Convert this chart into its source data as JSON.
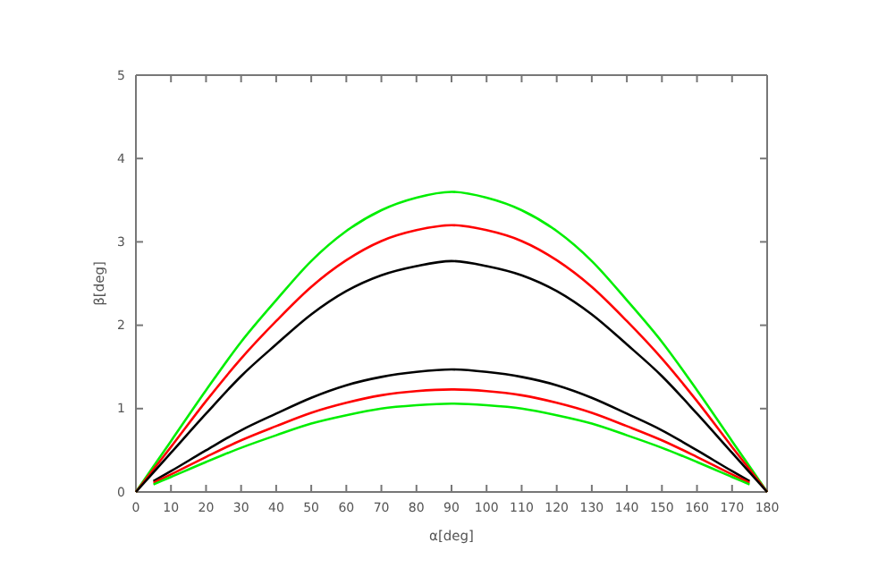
{
  "chart_data": {
    "type": "line",
    "xlabel": "α[deg]",
    "ylabel": "β[deg]",
    "x": [
      0,
      10,
      20,
      30,
      40,
      50,
      60,
      70,
      80,
      90,
      100,
      110,
      120,
      130,
      140,
      150,
      160,
      170,
      180
    ],
    "xlim": [
      0,
      180
    ],
    "xticks": [
      0,
      10,
      20,
      30,
      40,
      50,
      60,
      70,
      80,
      90,
      100,
      110,
      120,
      130,
      140,
      150,
      160,
      170,
      180
    ],
    "ylim": [
      0,
      5
    ],
    "yticks": [
      0,
      1,
      2,
      3,
      4,
      5
    ],
    "grid": false,
    "marker": "none",
    "line_style": "solid",
    "series": [
      {
        "color": "#00ee00",
        "values": [
          0,
          0.61,
          1.22,
          1.8,
          2.3,
          2.77,
          3.13,
          3.38,
          3.53,
          3.6,
          3.53,
          3.38,
          3.13,
          2.77,
          2.3,
          1.8,
          1.22,
          0.61,
          0
        ]
      },
      {
        "color": "#ff0000",
        "values": [
          0,
          0.54,
          1.09,
          1.6,
          2.05,
          2.46,
          2.78,
          3.01,
          3.14,
          3.2,
          3.14,
          3.01,
          2.78,
          2.46,
          2.05,
          1.6,
          1.09,
          0.54,
          0
        ]
      },
      {
        "color": "#000000",
        "values": [
          0,
          0.47,
          0.94,
          1.39,
          1.77,
          2.13,
          2.41,
          2.6,
          2.71,
          2.77,
          2.71,
          2.6,
          2.41,
          2.13,
          1.77,
          1.39,
          0.94,
          0.47,
          0
        ]
      },
      {
        "color": "#000000",
        "x": [
          5,
          10,
          20,
          30,
          40,
          50,
          60,
          70,
          80,
          90,
          100,
          110,
          120,
          130,
          140,
          150,
          160,
          170,
          175
        ],
        "values": [
          0.13,
          0.25,
          0.5,
          0.74,
          0.94,
          1.13,
          1.28,
          1.38,
          1.44,
          1.47,
          1.44,
          1.38,
          1.28,
          1.13,
          0.94,
          0.74,
          0.5,
          0.25,
          0.13
        ]
      },
      {
        "color": "#ff0000",
        "x": [
          5,
          10,
          20,
          30,
          40,
          50,
          60,
          70,
          80,
          90,
          100,
          110,
          120,
          130,
          140,
          150,
          160,
          170,
          175
        ],
        "values": [
          0.11,
          0.21,
          0.42,
          0.62,
          0.79,
          0.95,
          1.07,
          1.16,
          1.21,
          1.23,
          1.21,
          1.16,
          1.07,
          0.95,
          0.79,
          0.62,
          0.42,
          0.21,
          0.11
        ]
      },
      {
        "color": "#00ee00",
        "x": [
          5,
          10,
          20,
          30,
          40,
          50,
          60,
          70,
          80,
          90,
          100,
          110,
          120,
          130,
          140,
          150,
          160,
          170,
          175
        ],
        "values": [
          0.09,
          0.18,
          0.36,
          0.53,
          0.68,
          0.82,
          0.92,
          1.0,
          1.04,
          1.06,
          1.04,
          1.0,
          0.92,
          0.82,
          0.68,
          0.53,
          0.36,
          0.18,
          0.09
        ]
      }
    ]
  }
}
